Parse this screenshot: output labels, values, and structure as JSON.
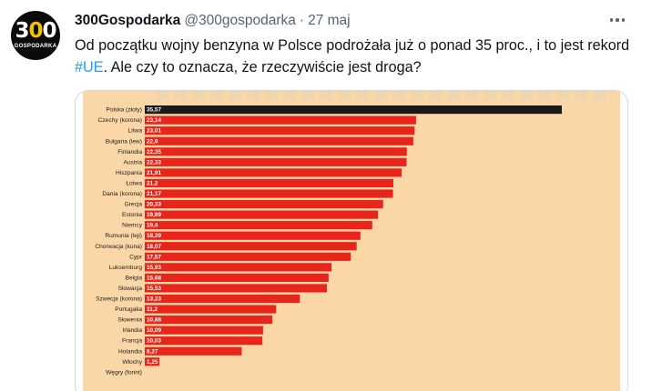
{
  "tweet": {
    "avatar": {
      "number_left": "3",
      "number_mid": "0",
      "number_right": "0",
      "sub": "GOSPODARKA",
      "icon": "300gospodarka-logo"
    },
    "display_name": "300Gospodarka",
    "handle": "@300gospodarka",
    "separator": "·",
    "date": "27 maj",
    "text_before": "Od początku wojny benzyna w Polsce podrożała już o ponad 35 proc., i to jest rekord ",
    "hashtag": "#UE",
    "text_after": ". Ale czy to oznacza, że rzeczywiście jest droga?",
    "more_icon": "more-horizontal-icon"
  },
  "colors": {
    "chart_background": "#fbd7a8",
    "bar_highlight": "#1a1a1a",
    "bar_default": "#e8251b",
    "hashtag": "#1d9bf0"
  },
  "chart_data": {
    "type": "bar",
    "orientation": "horizontal",
    "categories": [
      "Polska (złoty)",
      "Czechy (korona)",
      "Litwa",
      "Bułgaria (lew)",
      "Finlandia",
      "Austria",
      "Hiszpania",
      "Łotwa",
      "Dania (korona)",
      "Grecja",
      "Estonia",
      "Niemcy",
      "Rumunia (leji)",
      "Chorwacja (kuna)",
      "Cypr",
      "Luksemburg",
      "Belgia",
      "Słowacja",
      "Szwecja (korona)",
      "Portugalia",
      "Słowenia",
      "Irlandia",
      "Francja",
      "Holandia",
      "Włochy",
      "Węgry (forint)"
    ],
    "values": [
      35.57,
      23.14,
      23.01,
      22.9,
      22.35,
      22.33,
      21.91,
      21.2,
      21.17,
      20.33,
      19.89,
      19.4,
      18.39,
      18.07,
      17.57,
      15.93,
      15.68,
      15.53,
      13.23,
      11.2,
      10.88,
      10.09,
      10.03,
      8.27,
      1.25,
      null
    ],
    "value_labels": [
      "35,57",
      "23,14",
      "23,01",
      "22,9",
      "22,35",
      "22,33",
      "21,91",
      "21,2",
      "21,17",
      "20,33",
      "19,89",
      "19,4",
      "18,39",
      "18,07",
      "17,57",
      "15,93",
      "15,68",
      "15,53",
      "13,23",
      "11,2",
      "10,88",
      "10,09",
      "10,03",
      "8,27",
      "1,25",
      ""
    ],
    "highlight_index": 0,
    "xlim": [
      0,
      35.57
    ],
    "grid": false,
    "title": "",
    "xlabel": "",
    "ylabel": ""
  }
}
